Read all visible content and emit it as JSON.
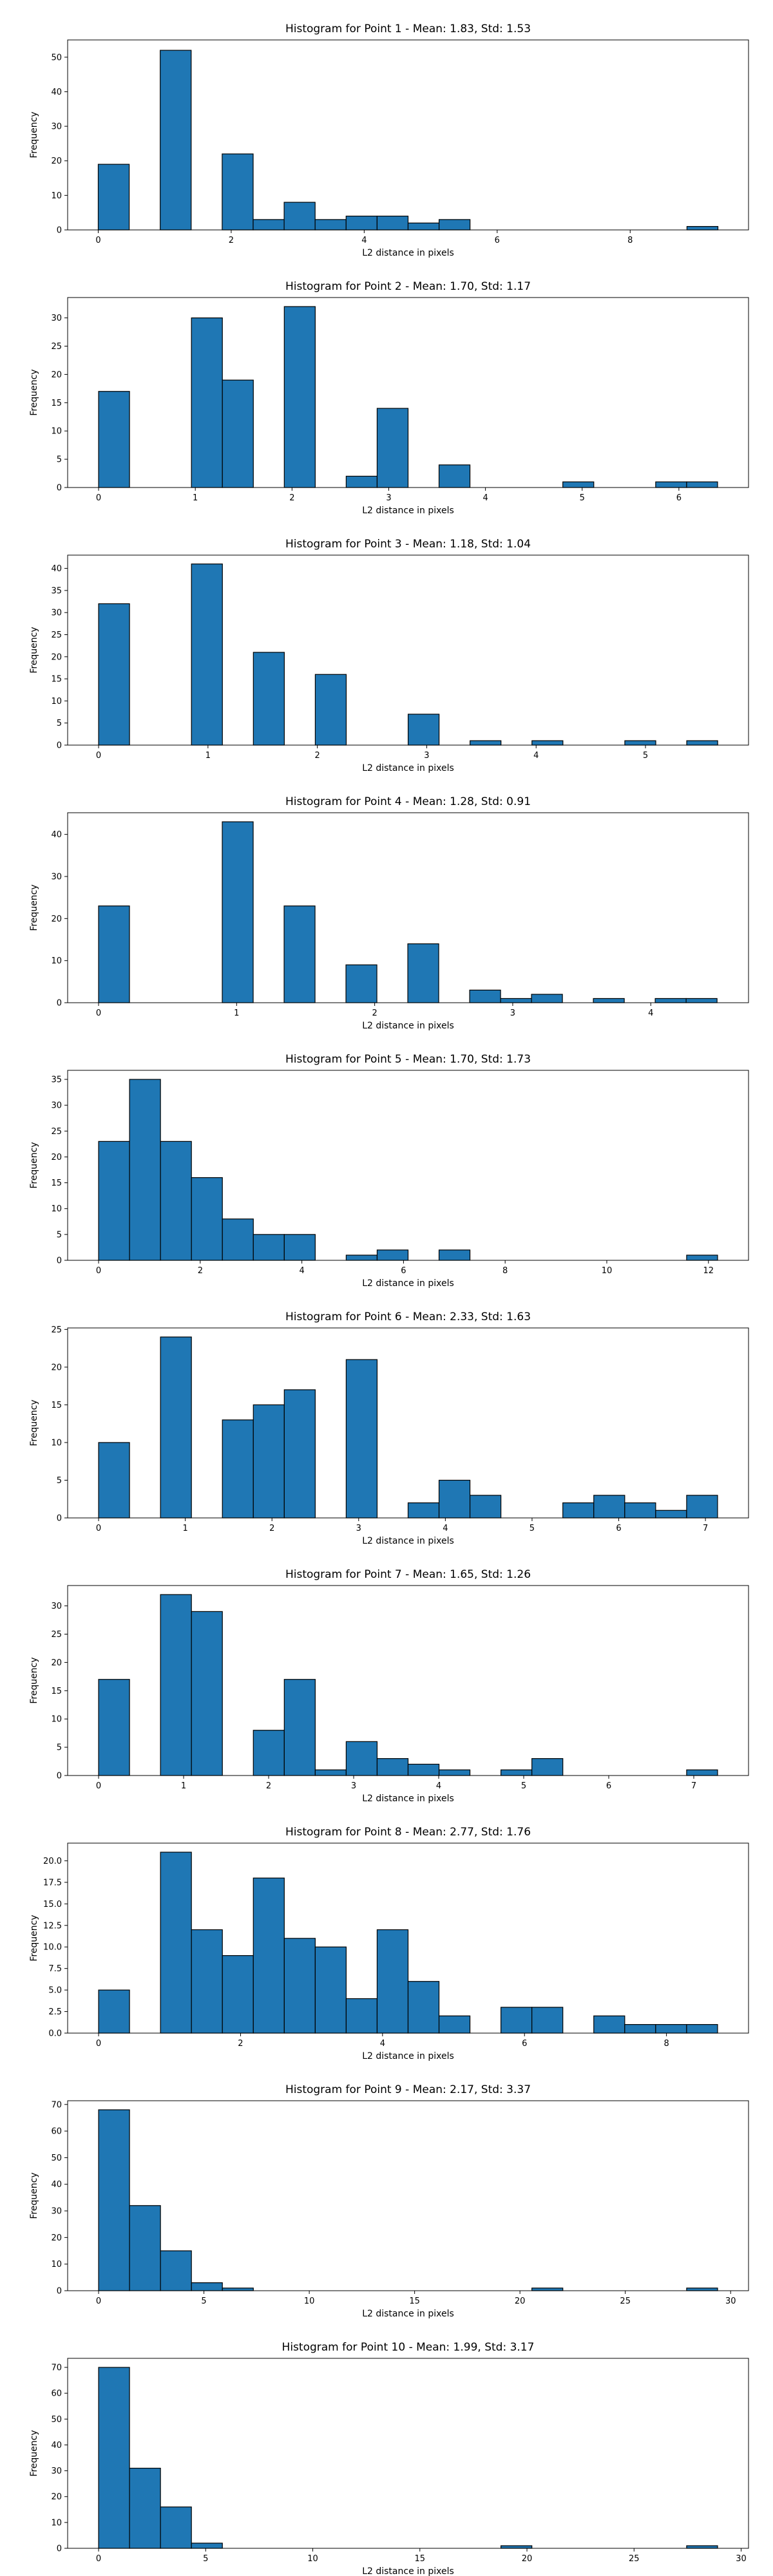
{
  "chart_data": [
    {
      "type": "bar",
      "title": "Histogram for Point 1 - Mean: 1.83, Std: 1.53",
      "xlabel": "L2 distance in pixels",
      "ylabel": "Frequency",
      "xlim": [
        -0.46,
        9.78
      ],
      "ylim": [
        0,
        55
      ],
      "xticks": [
        0,
        2,
        4,
        6,
        8
      ],
      "yticks": [
        0,
        10,
        20,
        30,
        40,
        50
      ],
      "bin_edges": [
        0.0,
        0.466,
        0.932,
        1.398,
        1.864,
        2.33,
        2.796,
        3.262,
        3.728,
        4.194,
        4.66,
        5.126,
        5.592,
        6.058,
        6.524,
        6.99,
        7.456,
        7.922,
        8.388,
        8.854,
        9.32
      ],
      "counts": [
        19,
        0,
        52,
        0,
        22,
        3,
        8,
        3,
        4,
        4,
        2,
        3,
        0,
        0,
        0,
        0,
        0,
        0,
        0,
        1
      ]
    },
    {
      "type": "bar",
      "title": "Histogram for Point 2 - Mean: 1.70, Std: 1.17",
      "xlabel": "L2 distance in pixels",
      "ylabel": "Frequency",
      "xlim": [
        -0.32,
        6.72
      ],
      "ylim": [
        0,
        33.6
      ],
      "xticks": [
        0,
        1,
        2,
        3,
        4,
        5,
        6
      ],
      "yticks": [
        0,
        5,
        10,
        15,
        20,
        25,
        30
      ],
      "bin_edges": [
        0.0,
        0.32,
        0.64,
        0.96,
        1.28,
        1.6,
        1.92,
        2.24,
        2.56,
        2.88,
        3.2,
        3.52,
        3.84,
        4.16,
        4.48,
        4.8,
        5.12,
        5.44,
        5.76,
        6.08,
        6.4
      ],
      "counts": [
        17,
        0,
        0,
        30,
        19,
        0,
        32,
        0,
        2,
        14,
        0,
        4,
        0,
        0,
        0,
        1,
        0,
        0,
        1,
        1
      ]
    },
    {
      "type": "bar",
      "title": "Histogram for Point 3 - Mean: 1.18, Std: 1.04",
      "xlabel": "L2 distance in pixels",
      "ylabel": "Frequency",
      "xlim": [
        -0.283,
        5.942
      ],
      "ylim": [
        0,
        43
      ],
      "xticks": [
        0,
        1,
        2,
        3,
        4,
        5
      ],
      "yticks": [
        0,
        5,
        10,
        15,
        20,
        25,
        30,
        35,
        40
      ],
      "bin_edges": [
        0.0,
        0.283,
        0.566,
        0.849,
        1.132,
        1.415,
        1.698,
        1.981,
        2.264,
        2.547,
        2.83,
        3.113,
        3.396,
        3.679,
        3.962,
        4.245,
        4.528,
        4.811,
        5.094,
        5.377,
        5.66
      ],
      "counts": [
        32,
        0,
        0,
        41,
        0,
        21,
        0,
        16,
        0,
        0,
        7,
        0,
        1,
        0,
        1,
        0,
        0,
        1,
        0,
        1
      ]
    },
    {
      "type": "bar",
      "title": "Histogram for Point 4 - Mean: 1.28, Std: 0.91",
      "xlabel": "L2 distance in pixels",
      "ylabel": "Frequency",
      "xlim": [
        -0.224,
        4.708
      ],
      "ylim": [
        0,
        45.15
      ],
      "xticks": [
        0,
        1,
        2,
        3,
        4
      ],
      "yticks": [
        0,
        10,
        20,
        30,
        40
      ],
      "bin_edges": [
        0.0,
        0.224,
        0.448,
        0.672,
        0.896,
        1.12,
        1.344,
        1.568,
        1.792,
        2.016,
        2.24,
        2.464,
        2.688,
        2.912,
        3.136,
        3.36,
        3.584,
        3.808,
        4.032,
        4.256,
        4.48
      ],
      "counts": [
        23,
        0,
        0,
        0,
        43,
        0,
        23,
        0,
        9,
        0,
        14,
        0,
        3,
        1,
        2,
        0,
        1,
        0,
        1,
        1
      ]
    },
    {
      "type": "bar",
      "title": "Histogram for Point 5 - Mean: 1.70, Std: 1.73",
      "xlabel": "L2 distance in pixels",
      "ylabel": "Frequency",
      "xlim": [
        -0.609,
        12.789
      ],
      "ylim": [
        0,
        36.75
      ],
      "xticks": [
        0,
        2,
        4,
        6,
        8,
        10,
        12
      ],
      "yticks": [
        0,
        5,
        10,
        15,
        20,
        25,
        30,
        35
      ],
      "bin_edges": [
        0.0,
        0.609,
        1.218,
        1.827,
        2.436,
        3.045,
        3.654,
        4.263,
        4.872,
        5.481,
        6.09,
        6.699,
        7.308,
        7.917,
        8.526,
        9.135,
        9.744,
        10.353,
        10.962,
        11.571,
        12.18
      ],
      "counts": [
        23,
        35,
        23,
        16,
        8,
        5,
        5,
        0,
        1,
        2,
        0,
        2,
        0,
        0,
        0,
        0,
        0,
        0,
        0,
        1
      ]
    },
    {
      "type": "bar",
      "title": "Histogram for Point 6 - Mean: 2.33, Std: 1.63",
      "xlabel": "L2 distance in pixels",
      "ylabel": "Frequency",
      "xlim": [
        -0.357,
        7.497
      ],
      "ylim": [
        0,
        25.2
      ],
      "xticks": [
        0,
        1,
        2,
        3,
        4,
        5,
        6,
        7
      ],
      "yticks": [
        0,
        5,
        10,
        15,
        20,
        25
      ],
      "bin_edges": [
        0.0,
        0.357,
        0.714,
        1.071,
        1.428,
        1.785,
        2.142,
        2.499,
        2.856,
        3.213,
        3.57,
        3.927,
        4.284,
        4.641,
        4.998,
        5.355,
        5.712,
        6.069,
        6.426,
        6.783,
        7.14
      ],
      "counts": [
        10,
        0,
        24,
        0,
        13,
        15,
        17,
        0,
        21,
        0,
        2,
        5,
        3,
        0,
        0,
        2,
        3,
        2,
        1,
        3
      ]
    },
    {
      "type": "bar",
      "title": "Histogram for Point 7 - Mean: 1.65, Std: 1.26",
      "xlabel": "L2 distance in pixels",
      "ylabel": "Frequency",
      "xlim": [
        -0.364,
        7.644
      ],
      "ylim": [
        0,
        33.6
      ],
      "xticks": [
        0,
        1,
        2,
        3,
        4,
        5,
        6,
        7
      ],
      "yticks": [
        0,
        5,
        10,
        15,
        20,
        25,
        30
      ],
      "bin_edges": [
        0.0,
        0.364,
        0.728,
        1.092,
        1.456,
        1.82,
        2.184,
        2.548,
        2.912,
        3.276,
        3.64,
        4.004,
        4.368,
        4.732,
        5.096,
        5.46,
        5.824,
        6.188,
        6.552,
        6.916,
        7.28
      ],
      "counts": [
        17,
        0,
        32,
        29,
        0,
        8,
        17,
        1,
        6,
        3,
        2,
        1,
        0,
        1,
        3,
        0,
        0,
        0,
        0,
        1
      ]
    },
    {
      "type": "bar",
      "title": "Histogram for Point 8 - Mean: 2.77, Std: 1.76",
      "xlabel": "L2 distance in pixels",
      "ylabel": "Frequency",
      "xlim": [
        -0.436,
        9.156
      ],
      "ylim": [
        0,
        22.05
      ],
      "xticks": [
        0,
        2,
        4,
        6,
        8
      ],
      "yticks": [
        0.0,
        2.5,
        5.0,
        7.5,
        10.0,
        12.5,
        15.0,
        17.5,
        20.0
      ],
      "ytick_format": "fixed1",
      "bin_edges": [
        0.0,
        0.436,
        0.872,
        1.308,
        1.744,
        2.18,
        2.616,
        3.052,
        3.488,
        3.924,
        4.36,
        4.796,
        5.232,
        5.668,
        6.104,
        6.54,
        6.976,
        7.412,
        7.848,
        8.284,
        8.72
      ],
      "counts": [
        5,
        0,
        21,
        12,
        9,
        18,
        11,
        10,
        4,
        12,
        6,
        2,
        0,
        3,
        3,
        0,
        2,
        1,
        1,
        1
      ]
    },
    {
      "type": "bar",
      "title": "Histogram for Point 9 - Mean: 2.17, Std: 3.37",
      "xlabel": "L2 distance in pixels",
      "ylabel": "Frequency",
      "xlim": [
        -1.469,
        30.849
      ],
      "ylim": [
        0,
        71.4
      ],
      "xticks": [
        0,
        5,
        10,
        15,
        20,
        25,
        30
      ],
      "yticks": [
        0,
        10,
        20,
        30,
        40,
        50,
        60,
        70
      ],
      "bin_edges": [
        0.0,
        1.469,
        2.938,
        4.407,
        5.876,
        7.345,
        8.814,
        10.283,
        11.752,
        13.221,
        14.69,
        16.159,
        17.628,
        19.097,
        20.566,
        22.035,
        23.504,
        24.973,
        26.442,
        27.911,
        29.38
      ],
      "counts": [
        68,
        32,
        15,
        3,
        1,
        0,
        0,
        0,
        0,
        0,
        0,
        0,
        0,
        0,
        1,
        0,
        0,
        0,
        0,
        1
      ]
    },
    {
      "type": "bar",
      "title": "Histogram for Point 10 - Mean: 1.99, Std: 3.17",
      "xlabel": "L2 distance in pixels",
      "ylabel": "Frequency",
      "xlim": [
        -1.445,
        30.345
      ],
      "ylim": [
        0,
        73.5
      ],
      "xticks": [
        0,
        5,
        10,
        15,
        20,
        25,
        30
      ],
      "yticks": [
        0,
        10,
        20,
        30,
        40,
        50,
        60,
        70
      ],
      "bin_edges": [
        0.0,
        1.445,
        2.89,
        4.335,
        5.78,
        7.225,
        8.67,
        10.115,
        11.56,
        13.005,
        14.45,
        15.895,
        17.34,
        18.785,
        20.23,
        21.675,
        23.12,
        24.565,
        26.01,
        27.455,
        28.9
      ],
      "counts": [
        70,
        31,
        16,
        2,
        0,
        0,
        0,
        0,
        0,
        0,
        0,
        0,
        0,
        1,
        0,
        0,
        0,
        0,
        0,
        1
      ]
    }
  ]
}
